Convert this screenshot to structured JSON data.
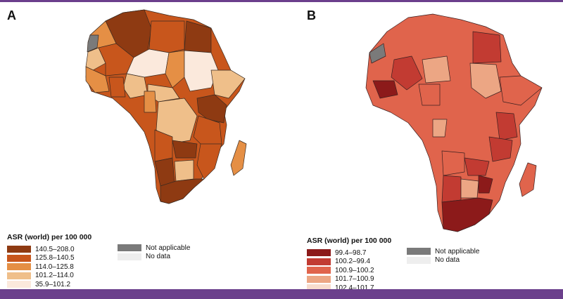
{
  "panels": [
    {
      "id": "A",
      "letter": "A",
      "legend_title": "ASR (world) per 100 000",
      "classes": [
        {
          "label": "140.5–208.0",
          "color": "#8e3a12"
        },
        {
          "label": "125.8–140.5",
          "color": "#c8561c"
        },
        {
          "label": "114.0–125.8",
          "color": "#e58f45"
        },
        {
          "label": "101.2–114.0",
          "color": "#efbf8a"
        },
        {
          "label": "35.9–101.2",
          "color": "#fbe9dc"
        }
      ]
    },
    {
      "id": "B",
      "letter": "B",
      "legend_title": "ASR (world) per 100 000",
      "classes": [
        {
          "label": "99.4–98.7",
          "color": "#8c1a1a"
        },
        {
          "label": "100.2–99.4",
          "color": "#c23b32"
        },
        {
          "label": "100.9–100.2",
          "color": "#e0644c"
        },
        {
          "label": "101.7–100.9",
          "color": "#eca684"
        },
        {
          "label": "102.4–101.7",
          "color": "#f8dccd"
        }
      ]
    }
  ],
  "special": {
    "not_applicable_label": "Not applicable",
    "not_applicable_color": "#7a7a7a",
    "no_data_label": "No data",
    "no_data_color": "#eeeeee"
  }
}
